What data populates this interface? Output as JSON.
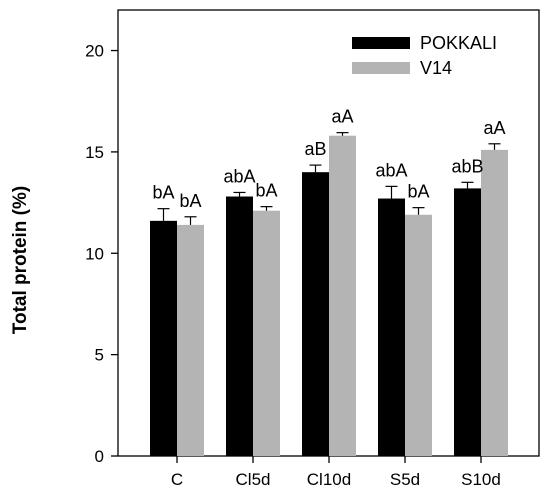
{
  "chart_data": {
    "type": "bar",
    "title": "",
    "xlabel": "",
    "ylabel": "Total protein (%)",
    "ylim": [
      0,
      22
    ],
    "yticks": [
      0,
      5,
      10,
      15,
      20
    ],
    "grid": false,
    "legend_position": "top-right",
    "categories": [
      "C",
      "Cl5d",
      "Cl10d",
      "S5d",
      "S10d"
    ],
    "series": [
      {
        "name": "POKKALI",
        "color": "#000000",
        "values": [
          11.6,
          12.8,
          14.0,
          12.7,
          13.2
        ],
        "errors": [
          0.6,
          0.2,
          0.35,
          0.6,
          0.3
        ],
        "labels": [
          "bA",
          "abA",
          "aB",
          "abA",
          "abB"
        ]
      },
      {
        "name": "V14",
        "color": "#b4b4b4",
        "values": [
          11.4,
          12.1,
          15.8,
          11.9,
          15.1
        ],
        "errors": [
          0.4,
          0.2,
          0.15,
          0.35,
          0.3
        ],
        "labels": [
          "bA",
          "bA",
          "aA",
          "bA",
          "aA"
        ]
      }
    ]
  }
}
